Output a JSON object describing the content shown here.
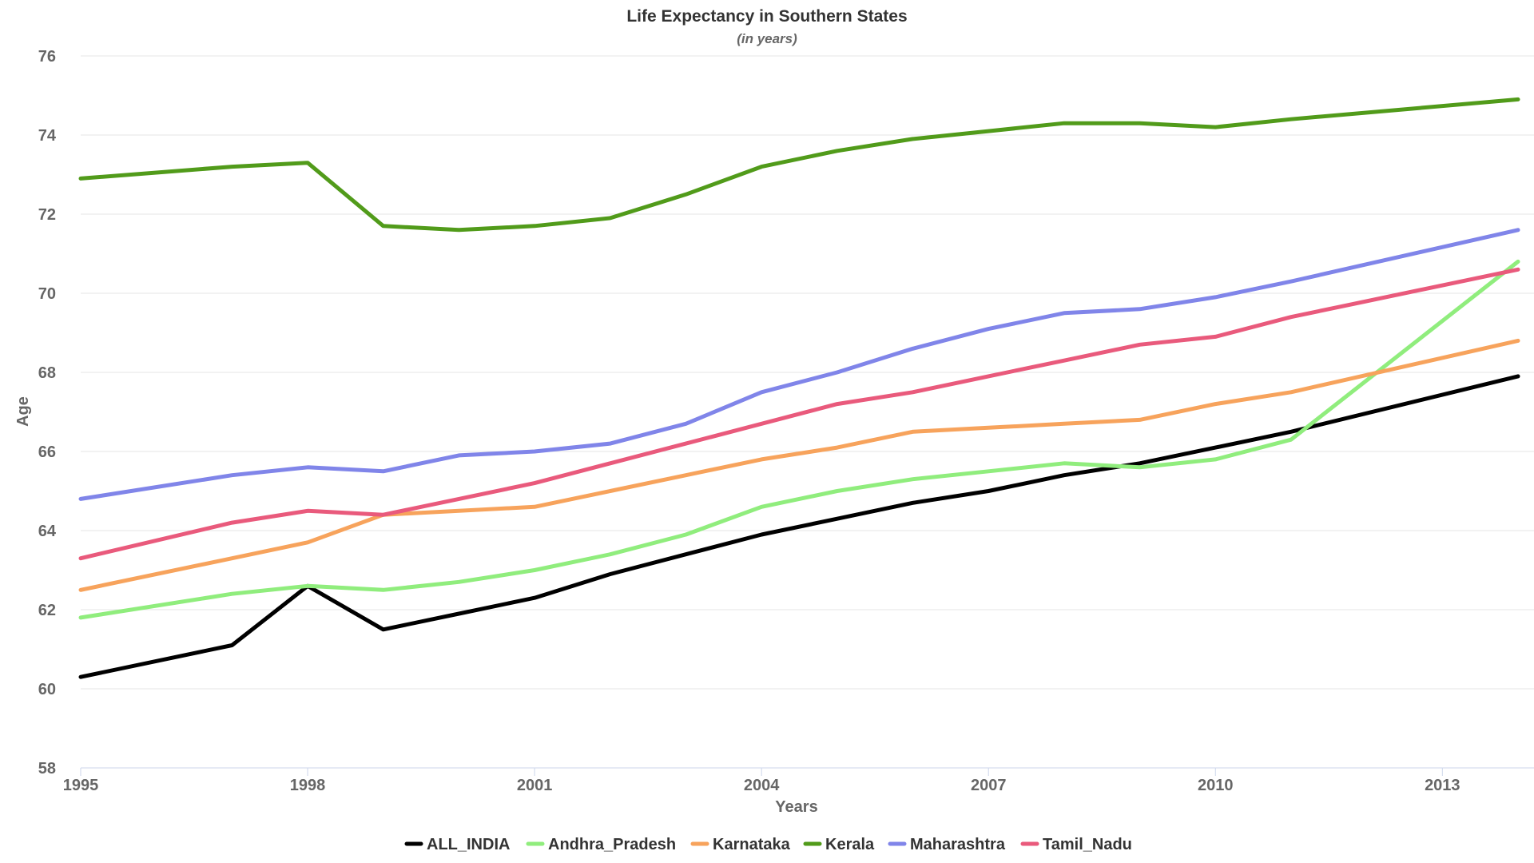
{
  "chart_data": {
    "type": "line",
    "title": "Life Expectancy in Southern States",
    "subtitle": "(in years)",
    "xlabel": "Years",
    "ylabel": "Age",
    "x": [
      1995,
      1997,
      1998,
      1999,
      2000,
      2001,
      2002,
      2003,
      2004,
      2005,
      2006,
      2007,
      2008,
      2009,
      2010,
      2011,
      2014
    ],
    "xlim": [
      1995,
      2014
    ],
    "ylim": [
      58,
      76
    ],
    "x_ticks": [
      1995,
      1998,
      2001,
      2004,
      2007,
      2010,
      2013
    ],
    "y_ticks": [
      58,
      60,
      62,
      64,
      66,
      68,
      70,
      72,
      74,
      76
    ],
    "grid": true,
    "legend_position": "bottom-center",
    "series": [
      {
        "name": "ALL_INDIA",
        "color": "#000000",
        "values": [
          60.3,
          61.1,
          62.6,
          61.5,
          61.9,
          62.3,
          62.9,
          63.4,
          63.9,
          64.3,
          64.7,
          65.0,
          65.4,
          65.7,
          66.1,
          66.5,
          67.9
        ]
      },
      {
        "name": "Andhra_Pradesh",
        "color": "#90ed7d",
        "values": [
          61.8,
          62.4,
          62.6,
          62.5,
          62.7,
          63.0,
          63.4,
          63.9,
          64.6,
          65.0,
          65.3,
          65.5,
          65.7,
          65.6,
          65.8,
          66.3,
          70.8
        ]
      },
      {
        "name": "Karnataka",
        "color": "#f7a35c",
        "values": [
          62.5,
          63.3,
          63.7,
          64.4,
          64.5,
          64.6,
          65.0,
          65.4,
          65.8,
          66.1,
          66.5,
          66.6,
          66.7,
          66.8,
          67.2,
          67.5,
          68.8
        ]
      },
      {
        "name": "Kerala",
        "color": "#519b1a",
        "values": [
          72.9,
          73.2,
          73.3,
          71.7,
          71.6,
          71.7,
          71.9,
          72.5,
          73.2,
          73.6,
          73.9,
          74.1,
          74.3,
          74.3,
          74.2,
          74.4,
          74.9
        ]
      },
      {
        "name": "Maharashtra",
        "color": "#8085e9",
        "values": [
          64.8,
          65.4,
          65.6,
          65.5,
          65.9,
          66.0,
          66.2,
          66.7,
          67.5,
          68.0,
          68.6,
          69.1,
          69.5,
          69.6,
          69.9,
          70.3,
          71.6
        ]
      },
      {
        "name": "Tamil_Nadu",
        "color": "#e95a7c",
        "values": [
          63.3,
          64.2,
          64.5,
          64.4,
          64.8,
          65.2,
          65.7,
          66.2,
          66.7,
          67.2,
          67.5,
          67.9,
          68.3,
          68.7,
          68.9,
          69.4,
          70.6
        ]
      }
    ]
  }
}
